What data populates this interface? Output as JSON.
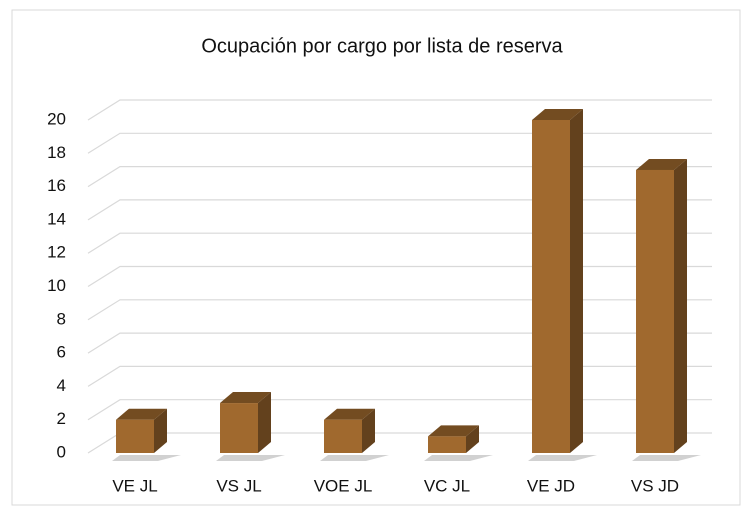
{
  "chart_data": {
    "type": "bar3d",
    "title": "Ocupación por cargo por lista de reserva",
    "categories": [
      "VE JL",
      "VS JL",
      "VOE JL",
      "VC JL",
      "VE JD",
      "VS JD"
    ],
    "values": [
      2,
      3,
      2,
      1,
      20,
      17
    ],
    "color": "#a0692e",
    "ylim": [
      0,
      20
    ],
    "yticks": [
      0,
      2,
      4,
      6,
      8,
      10,
      12,
      14,
      16,
      18,
      20
    ],
    "grid": true
  }
}
